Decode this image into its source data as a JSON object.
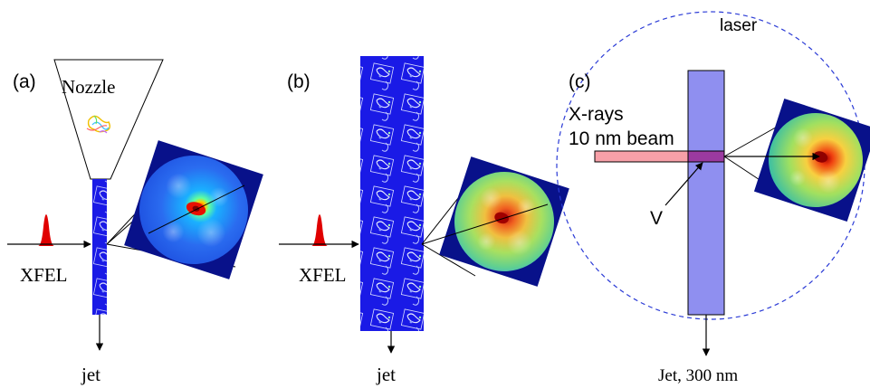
{
  "panels": {
    "a": {
      "tag": "(a)",
      "nozzle_label": "Nozzle",
      "source_label": "XFEL",
      "jet_label": "jet"
    },
    "b": {
      "tag": "(b)",
      "source_label": "XFEL",
      "jet_label": "jet"
    },
    "c": {
      "tag": "(c)",
      "laser_label": "laser",
      "xray_label_line1": "X-rays",
      "xray_label_line2": "10 nm beam",
      "volume_label": "V",
      "jet_label": "Jet, 300 nm"
    }
  },
  "colors": {
    "jet_blue": "#1a1ae6",
    "jet_translucent": "#8f8ff0",
    "pulse_red": "#e00000",
    "xray_beam": "#f7a0a8",
    "laser_circle": "#2b3bd6",
    "detector_frame": "#08118a"
  }
}
